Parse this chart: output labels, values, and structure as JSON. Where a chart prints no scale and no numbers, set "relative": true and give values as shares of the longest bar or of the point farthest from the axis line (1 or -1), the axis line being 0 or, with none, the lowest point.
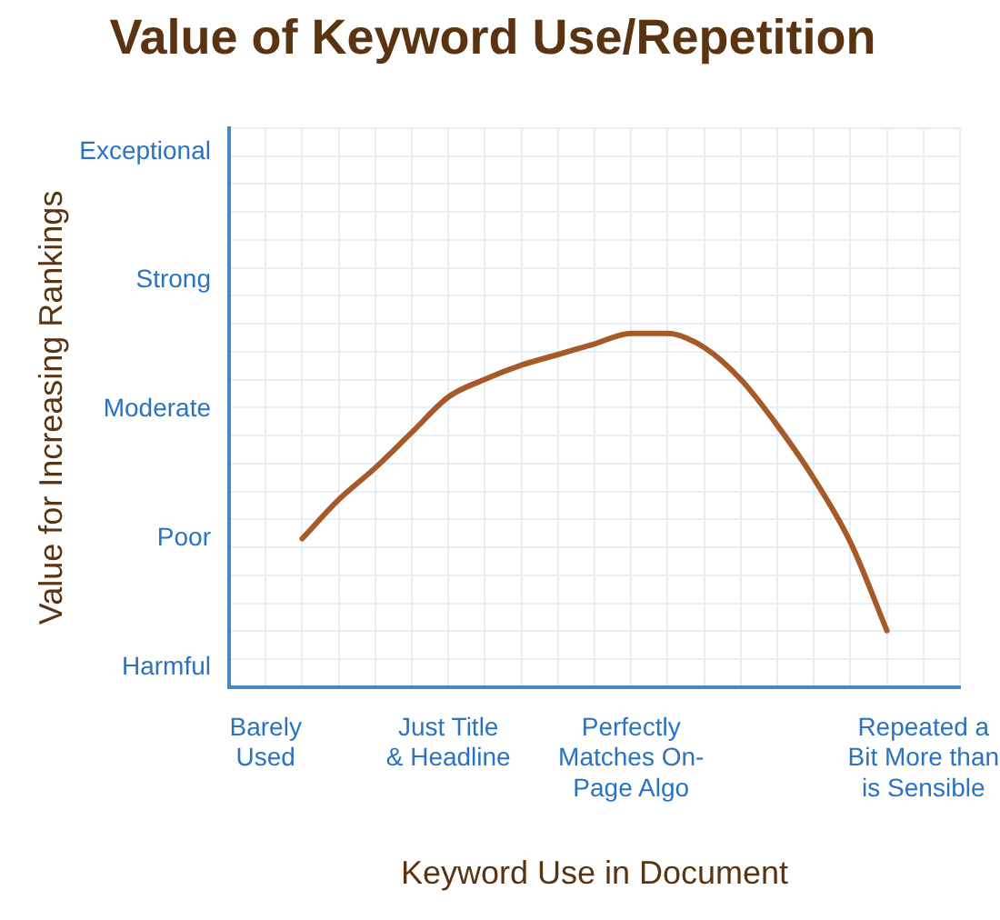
{
  "chart_data": {
    "type": "line",
    "title": "Value of Keyword Use/Repetition",
    "xlabel": "Keyword Use in Document",
    "ylabel": "Value for Increasing Rankings",
    "relative": true,
    "categories": [
      null,
      "Barely\nUsed",
      null,
      null,
      null,
      null,
      "Just Title\n& Headline",
      null,
      null,
      null,
      null,
      "Perfectly\nMatches On-\nPage Algo",
      null,
      null,
      null,
      null,
      null,
      null,
      null,
      "Repeated a\nBit More than\nis Sensible",
      null
    ],
    "series": [
      {
        "color": "#a65a28",
        "values": [
          null,
          null,
          0.42,
          0.53,
          0.62,
          0.72,
          0.82,
          0.87,
          0.91,
          0.94,
          0.97,
          1,
          1,
          0.96,
          0.87,
          0.74,
          0.59,
          0.41,
          0.16,
          null,
          null
        ]
      }
    ],
    "annotations": [
      "Harmful",
      "Poor",
      "Moderate",
      "Strong",
      "Exceptional"
    ],
    "grid": true,
    "legend": false,
    "marker": "none",
    "line_style": "solid"
  }
}
